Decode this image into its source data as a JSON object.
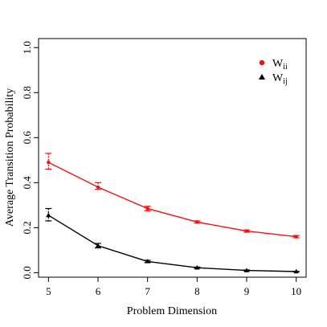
{
  "chart_data": {
    "type": "line",
    "title": "",
    "xlabel": "Problem Dimension",
    "ylabel": "Average Transition Probability",
    "x": [
      5,
      6,
      7,
      8,
      9,
      10
    ],
    "xlim": [
      4.8,
      10.2
    ],
    "ylim": [
      -0.02,
      1.04
    ],
    "x_ticks": [
      "5",
      "6",
      "7",
      "8",
      "9",
      "10"
    ],
    "y_ticks": [
      "0.0",
      "0.2",
      "0.4",
      "0.6",
      "0.8",
      "1.0"
    ],
    "grid": false,
    "legend_position": "top-right",
    "series": [
      {
        "name_main": "W",
        "name_sub": "ii",
        "marker": "circle",
        "color": "#ee1111",
        "values": [
          0.49,
          0.38,
          0.285,
          0.225,
          0.185,
          0.16
        ],
        "error_low": [
          0.46,
          0.37,
          0.275,
          0.22,
          0.18,
          0.155
        ],
        "error_high": [
          0.53,
          0.4,
          0.295,
          0.23,
          0.19,
          0.165
        ]
      },
      {
        "name_main": "W",
        "name_sub": "ij",
        "marker": "triangle",
        "color": "#000000",
        "values": [
          0.255,
          0.12,
          0.05,
          0.022,
          0.01,
          0.005
        ],
        "error_low": [
          0.23,
          0.11,
          0.045,
          0.02,
          0.008,
          0.004
        ],
        "error_high": [
          0.285,
          0.13,
          0.055,
          0.025,
          0.012,
          0.006
        ]
      }
    ]
  }
}
